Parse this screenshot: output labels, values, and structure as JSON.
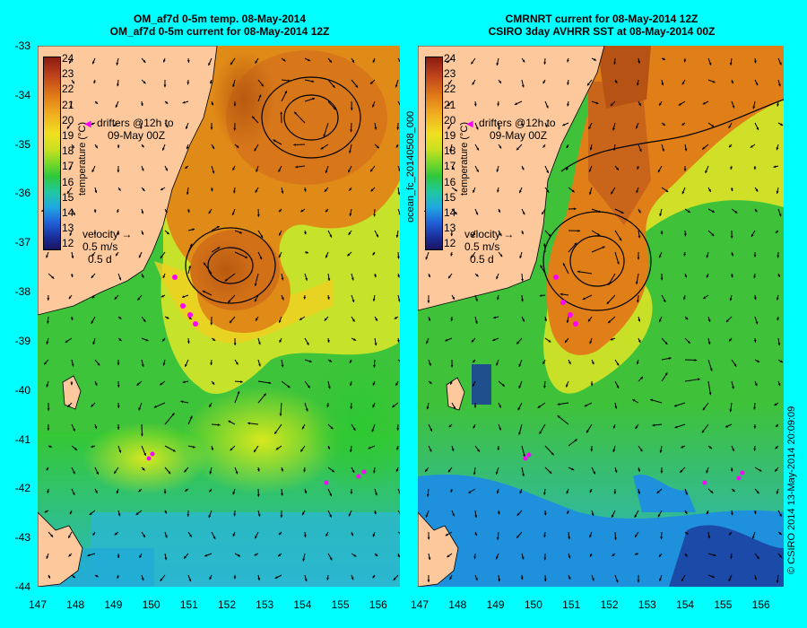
{
  "left": {
    "title_line1": "OM_af7d 0-5m temp. 08-May-2014",
    "title_line2": "OM_af7d 0-5m current for 08-May-2014 12Z",
    "drifters_line1": "drifters @12h to",
    "drifters_line2": "09-May 00Z",
    "velocity_label": "velocity",
    "velocity_speed": "0.5 m/s",
    "velocity_time": "0.5 d"
  },
  "right": {
    "title_line1": "CMRNRT current for 08-May-2014 12Z",
    "title_line2": "CSIRO 3day AVHRR SST at 08-May-2014 00Z",
    "drifters_line1": "drifters @12h to",
    "drifters_line2": "09-May 00Z",
    "velocity_label": "velocity",
    "velocity_speed": "0.5 m/s",
    "velocity_time": "0.5 d"
  },
  "colorbar": {
    "title": "temperature (°C)",
    "ticks": [
      "24",
      "23",
      "22",
      "21",
      "20",
      "19",
      "18",
      "17",
      "16",
      "15",
      "14",
      "13",
      "12"
    ]
  },
  "y_ticks": [
    "-33",
    "-34",
    "-35",
    "-36",
    "-37",
    "-38",
    "-39",
    "-40",
    "-41",
    "-42",
    "-43",
    "-44"
  ],
  "x_ticks": [
    "147",
    "148",
    "149",
    "150",
    "151",
    "152",
    "153",
    "154",
    "155",
    "156"
  ],
  "middle_vertical_label": "ocean_fc_20140508_000",
  "right_vertical_label": "© CSIRO 2014   13-May-2014 20:09:09",
  "colors": {
    "background": "#00ffff",
    "land": "#fcc89c",
    "drifter": "#ff00ff"
  }
}
